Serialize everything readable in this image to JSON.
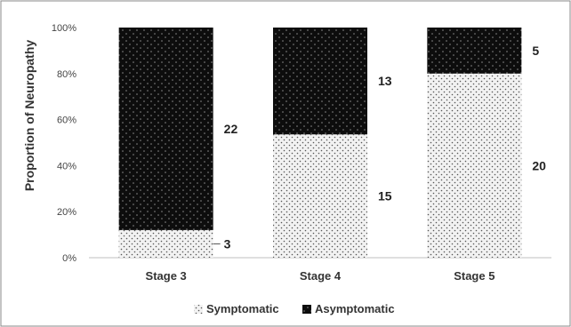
{
  "chart_data": {
    "type": "bar",
    "stacked": true,
    "normalized_percent": true,
    "categories": [
      "Stage 3",
      "Stage 4",
      "Stage 5"
    ],
    "series": [
      {
        "name": "Symptomatic",
        "counts": [
          3,
          15,
          20
        ],
        "pattern": "light-dots",
        "color": "#f2f2f2"
      },
      {
        "name": "Asymptomatic",
        "counts": [
          22,
          13,
          5
        ],
        "pattern": "dark-dots",
        "color": "#111111"
      }
    ],
    "ylabel": "Proportion of Neuropathy",
    "xlabel": "",
    "ylim": [
      0,
      100
    ],
    "yticks": [
      "0%",
      "20%",
      "40%",
      "60%",
      "80%",
      "100%"
    ],
    "data_labels": {
      "Symptomatic": [
        "3",
        "15",
        "20"
      ],
      "Asymptomatic": [
        "22",
        "13",
        "5"
      ]
    },
    "legend_position": "bottom",
    "grid": false
  }
}
